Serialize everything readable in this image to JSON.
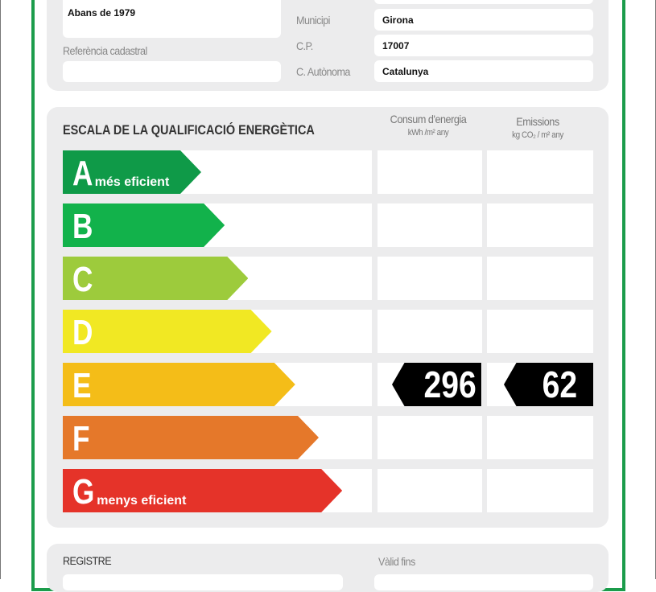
{
  "building": {
    "year_value": "Abans de 1979",
    "cadastral_label": "Referència cadastral",
    "cadastral_value": "",
    "municipi_label": "Municipi",
    "municipi_value": "Girona",
    "cp_label": "C.P.",
    "cp_value": "17007",
    "ca_label": "C. Autònoma",
    "ca_value": "Catalunya"
  },
  "scale": {
    "title": "ESCALA DE LA QUALIFICACIÓ ENERGÈTICA",
    "consumption_header": "Consum d'energia",
    "consumption_unit": "kWh /m² any",
    "emissions_header": "Emissions",
    "emissions_unit": "kg CO₂ / m² any",
    "classes": [
      {
        "letter": "A",
        "desc": "més eficient",
        "color": "#0f9a48"
      },
      {
        "letter": "B",
        "desc": "",
        "color": "#12b24b"
      },
      {
        "letter": "C",
        "desc": "",
        "color": "#9dcb3c"
      },
      {
        "letter": "D",
        "desc": "",
        "color": "#f1e823"
      },
      {
        "letter": "E",
        "desc": "",
        "color": "#f4bd18"
      },
      {
        "letter": "F",
        "desc": "",
        "color": "#e5782a"
      },
      {
        "letter": "G",
        "desc": "menys eficient",
        "color": "#e53329"
      }
    ],
    "rating_class": "E",
    "consumption_value": "296",
    "emissions_value": "62"
  },
  "registry": {
    "title": "REGISTRE",
    "valid_label": "Vàlid fins"
  }
}
